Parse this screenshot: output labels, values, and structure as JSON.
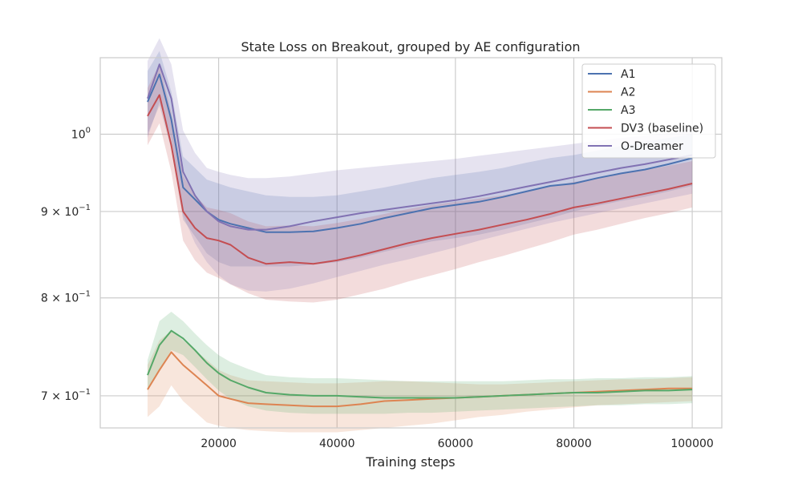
{
  "chart_data": {
    "type": "line",
    "title": "State Loss on Breakout, grouped by AE configuration",
    "xlabel": "Training steps",
    "ylabel": "",
    "yscale": "log",
    "xlim": [
      0,
      105000
    ],
    "ylim": [
      0.67,
      1.11
    ],
    "grid": true,
    "legend_position": "top-right",
    "x_ticks": [
      {
        "value": 20000,
        "label": "20000"
      },
      {
        "value": 40000,
        "label": "40000"
      },
      {
        "value": 60000,
        "label": "60000"
      },
      {
        "value": 80000,
        "label": "80000"
      },
      {
        "value": 100000,
        "label": "100000"
      }
    ],
    "y_ticks": [
      {
        "value": 1.0,
        "base": "10",
        "exp": "0",
        "mant": ""
      },
      {
        "value": 0.9,
        "base": "10",
        "exp": "−1",
        "mant": "9 × "
      },
      {
        "value": 0.8,
        "base": "10",
        "exp": "−1",
        "mant": "8 × "
      },
      {
        "value": 0.7,
        "base": "10",
        "exp": "−1",
        "mant": "7 × "
      }
    ],
    "x": [
      8000,
      10000,
      12000,
      14000,
      16000,
      18000,
      20000,
      22000,
      25000,
      28000,
      32000,
      36000,
      40000,
      44000,
      48000,
      52000,
      56000,
      60000,
      64000,
      68000,
      72000,
      76000,
      80000,
      84000,
      88000,
      92000,
      96000,
      100000
    ],
    "series": [
      {
        "name": "A1",
        "color": "#4c72b0",
        "values": [
          1.045,
          1.085,
          1.02,
          0.93,
          0.915,
          0.9,
          0.89,
          0.885,
          0.88,
          0.875,
          0.875,
          0.876,
          0.88,
          0.885,
          0.892,
          0.898,
          0.904,
          0.908,
          0.912,
          0.918,
          0.925,
          0.932,
          0.935,
          0.942,
          0.948,
          0.953,
          0.96,
          0.968
        ],
        "lower": [
          1.0,
          1.04,
          0.98,
          0.89,
          0.87,
          0.85,
          0.84,
          0.835,
          0.835,
          0.835,
          0.835,
          0.837,
          0.84,
          0.845,
          0.852,
          0.858,
          0.864,
          0.868,
          0.872,
          0.878,
          0.885,
          0.892,
          0.9,
          0.907,
          0.913,
          0.918,
          0.925,
          0.932
        ],
        "upper": [
          1.09,
          1.12,
          1.06,
          0.97,
          0.955,
          0.94,
          0.935,
          0.93,
          0.925,
          0.92,
          0.918,
          0.918,
          0.92,
          0.925,
          0.93,
          0.936,
          0.942,
          0.946,
          0.95,
          0.955,
          0.962,
          0.968,
          0.972,
          0.978,
          0.984,
          0.99,
          0.995,
          1.0
        ]
      },
      {
        "name": "A2",
        "color": "#dd8452",
        "values": [
          0.706,
          0.725,
          0.743,
          0.73,
          0.72,
          0.71,
          0.7,
          0.697,
          0.693,
          0.692,
          0.691,
          0.69,
          0.69,
          0.692,
          0.695,
          0.696,
          0.697,
          0.698,
          0.699,
          0.7,
          0.701,
          0.702,
          0.703,
          0.704,
          0.705,
          0.706,
          0.707,
          0.707
        ],
        "lower": [
          0.68,
          0.69,
          0.71,
          0.695,
          0.685,
          0.675,
          0.672,
          0.67,
          0.668,
          0.667,
          0.666,
          0.666,
          0.666,
          0.668,
          0.67,
          0.672,
          0.674,
          0.677,
          0.68,
          0.682,
          0.685,
          0.687,
          0.689,
          0.691,
          0.692,
          0.693,
          0.694,
          0.695
        ],
        "upper": [
          0.73,
          0.755,
          0.765,
          0.755,
          0.745,
          0.735,
          0.725,
          0.72,
          0.715,
          0.714,
          0.713,
          0.712,
          0.712,
          0.713,
          0.714,
          0.714,
          0.713,
          0.712,
          0.711,
          0.711,
          0.712,
          0.713,
          0.714,
          0.715,
          0.716,
          0.716,
          0.717,
          0.718
        ]
      },
      {
        "name": "A3",
        "color": "#55a868",
        "values": [
          0.72,
          0.75,
          0.765,
          0.757,
          0.745,
          0.732,
          0.722,
          0.715,
          0.708,
          0.703,
          0.701,
          0.7,
          0.7,
          0.699,
          0.698,
          0.698,
          0.698,
          0.698,
          0.699,
          0.7,
          0.701,
          0.702,
          0.703,
          0.703,
          0.704,
          0.705,
          0.705,
          0.706
        ],
        "lower": [
          0.705,
          0.725,
          0.745,
          0.74,
          0.728,
          0.716,
          0.705,
          0.697,
          0.69,
          0.686,
          0.684,
          0.683,
          0.683,
          0.683,
          0.683,
          0.684,
          0.684,
          0.685,
          0.686,
          0.687,
          0.688,
          0.689,
          0.69,
          0.691,
          0.691,
          0.692,
          0.692,
          0.693
        ],
        "upper": [
          0.735,
          0.775,
          0.785,
          0.775,
          0.762,
          0.75,
          0.74,
          0.733,
          0.726,
          0.72,
          0.718,
          0.717,
          0.717,
          0.716,
          0.715,
          0.714,
          0.714,
          0.714,
          0.714,
          0.714,
          0.715,
          0.716,
          0.716,
          0.717,
          0.717,
          0.718,
          0.718,
          0.719
        ]
      },
      {
        "name": "DV3 (baseline)",
        "color": "#c44e52",
        "values": [
          1.025,
          1.055,
          0.985,
          0.9,
          0.88,
          0.868,
          0.865,
          0.86,
          0.845,
          0.838,
          0.84,
          0.838,
          0.842,
          0.848,
          0.855,
          0.862,
          0.868,
          0.873,
          0.878,
          0.884,
          0.89,
          0.897,
          0.905,
          0.91,
          0.916,
          0.922,
          0.928,
          0.935
        ],
        "lower": [
          0.985,
          1.015,
          0.95,
          0.865,
          0.842,
          0.828,
          0.822,
          0.815,
          0.805,
          0.798,
          0.796,
          0.795,
          0.798,
          0.804,
          0.81,
          0.818,
          0.825,
          0.832,
          0.84,
          0.847,
          0.855,
          0.863,
          0.872,
          0.878,
          0.885,
          0.892,
          0.898,
          0.905
        ],
        "upper": [
          1.065,
          1.1,
          1.03,
          0.945,
          0.92,
          0.905,
          0.902,
          0.898,
          0.888,
          0.882,
          0.883,
          0.882,
          0.886,
          0.891,
          0.897,
          0.903,
          0.908,
          0.912,
          0.916,
          0.92,
          0.925,
          0.931,
          0.937,
          0.942,
          0.947,
          0.952,
          0.958,
          0.964
        ]
      },
      {
        "name": "O-Dreamer",
        "color": "#8172b3",
        "values": [
          1.05,
          1.1,
          1.05,
          0.95,
          0.92,
          0.9,
          0.888,
          0.882,
          0.878,
          0.878,
          0.882,
          0.888,
          0.893,
          0.898,
          0.902,
          0.906,
          0.91,
          0.914,
          0.919,
          0.925,
          0.931,
          0.937,
          0.943,
          0.949,
          0.955,
          0.96,
          0.966,
          0.972
        ],
        "lower": [
          0.995,
          1.045,
          0.995,
          0.895,
          0.862,
          0.84,
          0.825,
          0.815,
          0.808,
          0.807,
          0.81,
          0.816,
          0.823,
          0.83,
          0.837,
          0.843,
          0.85,
          0.857,
          0.865,
          0.872,
          0.879,
          0.886,
          0.892,
          0.898,
          0.904,
          0.91,
          0.916,
          0.922
        ],
        "upper": [
          1.105,
          1.14,
          1.1,
          1.005,
          0.975,
          0.955,
          0.95,
          0.946,
          0.942,
          0.942,
          0.944,
          0.948,
          0.952,
          0.955,
          0.958,
          0.961,
          0.964,
          0.967,
          0.971,
          0.975,
          0.979,
          0.983,
          0.987,
          0.991,
          0.995,
          0.998,
          1.002,
          1.006
        ]
      }
    ]
  }
}
